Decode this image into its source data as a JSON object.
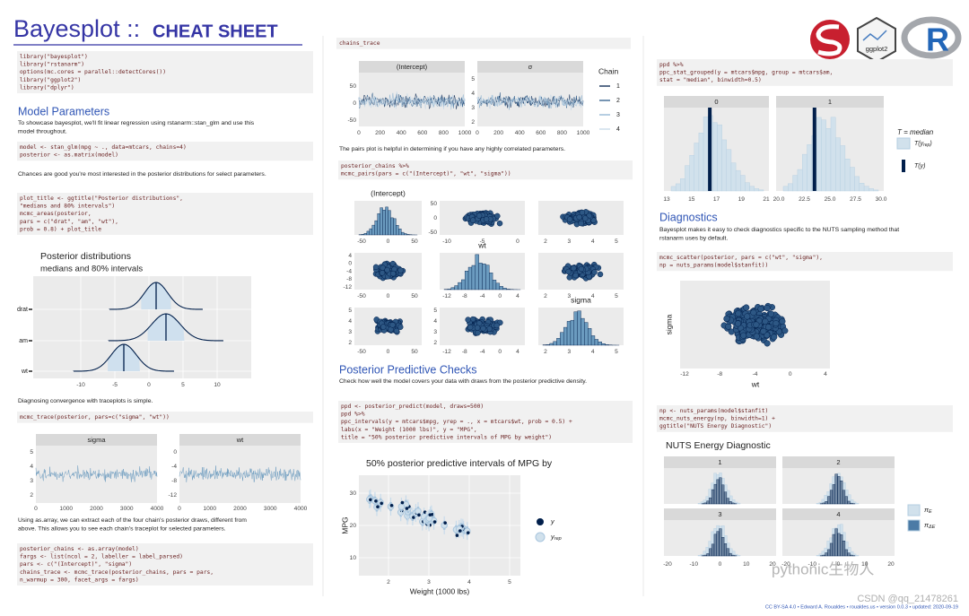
{
  "header": {
    "title": "Bayesplot ::",
    "subtitle": "CHEAT SHEET",
    "logo_text": "ggplot2",
    "logo_r": "R"
  },
  "col1": {
    "setup_code": [
      "library(\"bayesplot\")",
      "library(\"rstanarm\")",
      "options(mc.cores = parallel::detectCores())",
      "library(\"ggplot2\")",
      "library(\"dplyr\")"
    ],
    "model_heading": "Model Parameters",
    "model_text": [
      "To showcase bayesplot, we'll fit linear regression using rstanarm::stan_glm and use this",
      "model throughout."
    ],
    "model_code": [
      "model <- stan_glm(mpg ~ ., data=mtcars, chains=4)",
      "posterior <- as.matrix(model)"
    ],
    "chances_text": [
      "Chances are good you're most interested in the posterior distributions for select parameters."
    ],
    "areas_code": [
      "plot_title <- ggtitle(\"Posterior distributions\",",
      "                      \"medians and 80% intervals\")",
      "mcmc_areas(posterior,",
      "           pars = c(\"drat\", \"am\", \"wt\"),",
      "           prob = 0.8) + plot_title"
    ],
    "areas_plot": {
      "title": "Posterior distributions",
      "subtitle": "medians and 80% intervals",
      "rows": [
        "drat",
        "am",
        "wt"
      ],
      "xticks": [
        "-10",
        "-5",
        "0",
        "5",
        "10"
      ]
    },
    "trace_text": [
      "Diagnosing convergence with traceplots is simple."
    ],
    "trace_code": [
      "mcmc_trace(posterior, pars=c(\"sigma\", \"wt\"))"
    ],
    "trace_plot": [
      {
        "title": "sigma",
        "yticks": [
          "5",
          "4",
          "3",
          "2"
        ],
        "xticks": [
          "0",
          "1000",
          "2000",
          "3000",
          "4000"
        ]
      },
      {
        "title": "wt",
        "yticks": [
          "0",
          "-4",
          "-8",
          "-12"
        ],
        "xticks": [
          "0",
          "1000",
          "2000",
          "3000",
          "4000"
        ]
      }
    ],
    "array_text": [
      "Using as.array, we can extract each of the four chain's posterior draws, different from",
      "above. This allows you to see each chain's traceplot for selected parameters."
    ],
    "array_code": [
      "posterior_chains <- as.array(model)",
      "fargs <- list(ncol = 2, labeller = label_parsed)",
      "pars <- c(\"(Intercept)\", \"sigma\")",
      "chains_trace <- mcmc_trace(posterior_chains, pars = pars,",
      "                           n_warmup = 300, facet_args = fargs)"
    ]
  },
  "col2": {
    "trace_code": [
      "chains_trace"
    ],
    "trace_plot": {
      "panels": [
        {
          "title": "(Intercept)",
          "yticks": [
            "50",
            "0",
            "-50"
          ]
        },
        {
          "title": "σ",
          "yticks": [
            "5",
            "4",
            "3",
            "2"
          ]
        }
      ],
      "xticks": [
        "0",
        "200",
        "400",
        "600",
        "800",
        "1000"
      ],
      "legend_title": "Chain",
      "legend": [
        "1",
        "2",
        "3",
        "4"
      ]
    },
    "pairs_text": [
      "The pairs plot is helpful in determining if you have any highly correlated parameters."
    ],
    "pairs_code": [
      "posterior_chains %>%",
      "  mcmc_pairs(pars = c(\"(Intercept)\", \"wt\", \"sigma\"))"
    ],
    "pairs_plot": [
      {
        "label": "(Intercept)",
        "xticks": [
          "-50",
          "0",
          "50"
        ]
      },
      {
        "xticks": [
          "-10",
          "-5",
          "0"
        ],
        "yticks": [
          "50",
          "0",
          "-50"
        ]
      },
      {
        "xticks": [
          "2",
          "3",
          "4",
          "5"
        ]
      },
      {
        "xticks": [
          "-50",
          "0",
          "50"
        ],
        "yticks": [
          "4",
          "0",
          "-4",
          "-8",
          "-12"
        ]
      },
      {
        "label": "wt",
        "xticks": [
          "-12",
          "-8",
          "-4",
          "0",
          "4"
        ]
      },
      {
        "xticks": [
          "2",
          "3",
          "4",
          "5"
        ]
      },
      {
        "xticks": [
          "-50",
          "0",
          "50"
        ],
        "yticks": [
          "5",
          "4",
          "3",
          "2"
        ]
      },
      {
        "xticks": [
          "-12",
          "-8",
          "-4",
          "0",
          "4"
        ],
        "yticks": [
          "5",
          "4",
          "3",
          "2"
        ]
      },
      {
        "label": "sigma",
        "xticks": [
          "2",
          "3",
          "4",
          "5"
        ]
      }
    ],
    "ppc_heading": "Posterior Predictive Checks",
    "ppc_text": [
      "Check how well the model covers your data with draws from the posterior predictive density."
    ],
    "ppc_code": [
      "ppd <- posterior_predict(model, draws=500)",
      "ppd %>%",
      "  ppc_intervals(y = mtcars$mpg, yrep = ., x = mtcars$wt, prob = 0.5) +",
      "  labs(x = \"Weight (1000 lbs)\", y = \"MPG\",",
      "    title = \"50% posterior predictive intervals of MPG by weight\")"
    ],
    "ppc_plot": {
      "title": "50% posterior predictive intervals of MPG by",
      "ylabel": "MPG",
      "xlabel": "Weight (1000 lbs)",
      "yticks": [
        "30",
        "20",
        "10"
      ],
      "xticks": [
        "2",
        "3",
        "4",
        "5"
      ],
      "legend": [
        {
          "text": "y"
        },
        {
          "text": "y",
          "sub": "rep"
        }
      ]
    }
  },
  "col3": {
    "stat_code": [
      "ppd %>%",
      "  ppc_stat_grouped(y = mtcars$mpg,  group = mtcars$am,",
      "                   stat = \"median\", binwidth=0.5)"
    ],
    "stat_plot": {
      "panels": [
        {
          "title": "0",
          "xticks": [
            "13",
            "15",
            "17",
            "19",
            "21"
          ]
        },
        {
          "title": "1",
          "xticks": [
            "20.0",
            "22.5",
            "25.0",
            "27.5",
            "30.0"
          ]
        }
      ],
      "legend_title": "T = median",
      "legend": [
        {
          "text": "T(y",
          "sub": "rep",
          "tail": ")"
        },
        {
          "text": "T(y)"
        }
      ]
    },
    "diag_heading": "Diagnostics",
    "diag_text": [
      "Bayesplot makes it easy to check diagnostics specific to the NUTS sampling method that",
      "rstanarm uses by default."
    ],
    "scatter_code": [
      "mcmc_scatter(posterior, pars = c(\"wt\", \"sigma\"),",
      "  np = nuts_params(model$stanfit))"
    ],
    "scatter_plot": {
      "ylabel": "sigma",
      "xlabel": "wt",
      "xticks": [
        "-12",
        "-8",
        "-4",
        "0",
        "4"
      ]
    },
    "energy_code": [
      "np <- nuts_params(model$stanfit)",
      "mcmc_nuts_energy(np, binwidth=1) +",
      "    ggtitle(\"NUTS Energy Diagnostic\")"
    ],
    "energy_plot": {
      "title": "NUTS Energy Diagnostic",
      "panels": [
        "1",
        "2",
        "3",
        "4"
      ],
      "xticks": [
        "-20",
        "-10",
        "0",
        "10",
        "20"
      ],
      "legend": [
        {
          "text": "π",
          "sub": "E"
        },
        {
          "text": "π",
          "sub": "ΔE"
        }
      ]
    }
  },
  "footer": "CC BY-SA 4.0 • Edward A. Roualdes • roualdes.us • version 0.0.3 • updated: 2020-09-19",
  "watermarks": [
    "pythonic生物人",
    "CSDN @qq_21478261"
  ]
}
